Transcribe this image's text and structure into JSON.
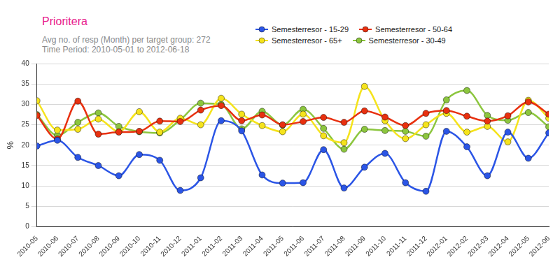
{
  "chart_data": {
    "type": "line",
    "title": "Prioritera",
    "subtitle": [
      "Avg no. of resp (Month) per target group: 272",
      "Time Period: 2010-05-01 to 2012-06-18"
    ],
    "y_label": "%",
    "categories": [
      "2010-05",
      "2010-06",
      "2010-07",
      "2010-08",
      "2010-09",
      "2010-10",
      "2010-11",
      "2010-12",
      "2011-01",
      "2011-02",
      "2011-03",
      "2011-04",
      "2011-05",
      "2011-06",
      "2011-07",
      "2011-08",
      "2011-09",
      "2011-10",
      "2011-11",
      "2011-12",
      "2012-01",
      "2012-02",
      "2012-03",
      "2012-04",
      "2012-05",
      "2012-06"
    ],
    "series": [
      {
        "name": "Semesterresor - 15-29",
        "color": "#2b55e6",
        "marker": "circle",
        "line_style": "solid",
        "values": [
          19.8,
          21.2,
          17,
          15,
          12.5,
          17.7,
          16.3,
          8.9,
          12,
          26,
          23.5,
          12.7,
          10.7,
          10.8,
          18.9,
          9.5,
          14.6,
          18,
          10.8,
          8.7,
          23.4,
          19.6,
          12.5,
          23.2,
          16.8,
          23
        ]
      },
      {
        "name": "Semesterresor - 50-64",
        "color": "#e8300f",
        "marker": "circle",
        "line_style": "solid",
        "values": [
          27.3,
          21.5,
          30.8,
          22.7,
          23.2,
          23.4,
          25.9,
          25.8,
          28.6,
          29.7,
          26,
          27.4,
          25,
          25.8,
          26.8,
          25.6,
          28.4,
          26.9,
          24.8,
          27.8,
          28.5,
          27.1,
          25.9,
          27.2,
          30.6,
          27.6
        ]
      },
      {
        "name": "Semesterresor - 65+",
        "color": "#f5e31c",
        "marker": "circle",
        "line_style": "solid",
        "values": [
          30.9,
          23.7,
          23.9,
          26.4,
          23.3,
          28.2,
          23.2,
          26.6,
          25,
          31.5,
          27.6,
          24.8,
          23.3,
          27.6,
          22.3,
          20.6,
          34.4,
          26,
          21.6,
          25,
          27.8,
          23.2,
          24.6,
          20.8,
          31,
          26.6
        ]
      },
      {
        "name": "Semesterresor - 30-49",
        "color": "#8cc63e",
        "marker": "circle",
        "line_style": "solid",
        "values": [
          27.5,
          22.4,
          25.6,
          27.9,
          24.6,
          23.3,
          23,
          26.2,
          30.3,
          30,
          24,
          28.3,
          24.9,
          28.8,
          24.1,
          19,
          23.9,
          23.6,
          23.4,
          22.2,
          31.1,
          33.4,
          27.3,
          26.1,
          28,
          24.5
        ]
      }
    ],
    "ylim": [
      0,
      40
    ],
    "yticks": [
      0,
      5,
      10,
      15,
      20,
      25,
      30,
      35,
      40
    ],
    "grid": true,
    "legend": "top-right"
  }
}
